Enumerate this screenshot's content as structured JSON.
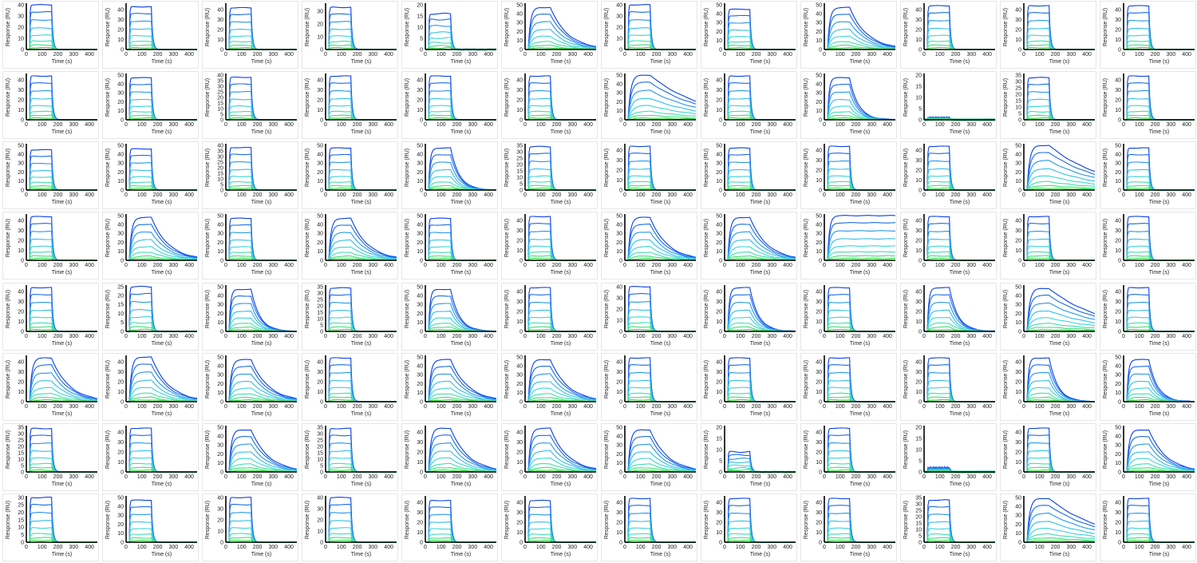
{
  "colors": {
    "series_gradient": [
      "#0a3fe8",
      "#1f7de8",
      "#32b8ea",
      "#3fd9d4",
      "#43e08f",
      "#2fdc3a"
    ],
    "axis": "#000000",
    "panel_border": "#e6e6e6"
  },
  "chart_data": {
    "type": "line",
    "layout": {
      "rows": 8,
      "cols": 12
    },
    "xlabel": "Time (s)",
    "ylabel": "Response (RU)",
    "xlim": [
      0,
      450
    ],
    "xticks": [
      0,
      100,
      200,
      300,
      400
    ],
    "injection": {
      "start_s": 20,
      "end_s": 160
    },
    "panels": [
      {
        "ymax": 40,
        "yticks": [
          0,
          10,
          20,
          30,
          40
        ],
        "kinetics": "fast",
        "peak": 40
      },
      {
        "ymax": 45,
        "yticks": [
          0,
          10,
          20,
          30,
          40
        ],
        "kinetics": "fast",
        "peak": 43
      },
      {
        "ymax": 45,
        "yticks": [
          0,
          10,
          20,
          30,
          40
        ],
        "kinetics": "fast",
        "peak": 42
      },
      {
        "ymax": 35,
        "yticks": [
          0,
          10,
          20,
          30
        ],
        "kinetics": "fast",
        "peak": 33
      },
      {
        "ymax": 20,
        "yticks": [
          0,
          5,
          10,
          15,
          20
        ],
        "kinetics": "fast",
        "peak": 16
      },
      {
        "ymax": 50,
        "yticks": [
          0,
          10,
          20,
          30,
          40,
          50
        ],
        "kinetics": "slow",
        "peak": 47
      },
      {
        "ymax": 40,
        "yticks": [
          0,
          10,
          20,
          30,
          40
        ],
        "kinetics": "fast",
        "peak": 40
      },
      {
        "ymax": 50,
        "yticks": [
          0,
          10,
          20,
          30,
          40,
          50
        ],
        "kinetics": "fast",
        "peak": 45
      },
      {
        "ymax": 50,
        "yticks": [
          0,
          10,
          20,
          30,
          40,
          50
        ],
        "kinetics": "slow",
        "peak": 47
      },
      {
        "ymax": 45,
        "yticks": [
          0,
          10,
          20,
          30,
          40
        ],
        "kinetics": "fast",
        "peak": 44
      },
      {
        "ymax": 45,
        "yticks": [
          0,
          10,
          20,
          30,
          40
        ],
        "kinetics": "fast",
        "peak": 44
      },
      {
        "ymax": 45,
        "yticks": [
          0,
          10,
          20,
          30,
          40
        ],
        "kinetics": "fast",
        "peak": 44
      },
      {
        "ymax": 45,
        "yticks": [
          0,
          10,
          20,
          30,
          40
        ],
        "kinetics": "fast",
        "peak": 44
      },
      {
        "ymax": 50,
        "yticks": [
          0,
          10,
          20,
          30,
          40,
          50
        ],
        "kinetics": "fast",
        "peak": 47
      },
      {
        "ymax": 40,
        "yticks": [
          0,
          5,
          10,
          15,
          20,
          25,
          30,
          35,
          40
        ],
        "kinetics": "fast",
        "peak": 38
      },
      {
        "ymax": 45,
        "yticks": [
          0,
          10,
          20,
          30,
          40
        ],
        "kinetics": "fast",
        "peak": 44
      },
      {
        "ymax": 45,
        "yticks": [
          0,
          10,
          20,
          30,
          40
        ],
        "kinetics": "fast",
        "peak": 44
      },
      {
        "ymax": 45,
        "yticks": [
          0,
          10,
          20,
          30,
          40
        ],
        "kinetics": "fast",
        "peak": 44
      },
      {
        "ymax": 50,
        "yticks": [
          0,
          10,
          20,
          30,
          40,
          50
        ],
        "kinetics": "veryslow",
        "peak": 50
      },
      {
        "ymax": 45,
        "yticks": [
          0,
          10,
          20,
          30,
          40
        ],
        "kinetics": "fast",
        "peak": 44
      },
      {
        "ymax": 50,
        "yticks": [
          0,
          10,
          20,
          30,
          40,
          50
        ],
        "kinetics": "medium",
        "peak": 47
      },
      {
        "ymax": 20,
        "yticks": [
          0,
          5,
          10,
          15,
          20
        ],
        "kinetics": "flat",
        "peak": 1
      },
      {
        "ymax": 35,
        "yticks": [
          0,
          5,
          10,
          15,
          20,
          25,
          30,
          35
        ],
        "kinetics": "fast",
        "peak": 33
      },
      {
        "ymax": 45,
        "yticks": [
          0,
          10,
          20,
          30,
          40
        ],
        "kinetics": "fast",
        "peak": 44
      },
      {
        "ymax": 50,
        "yticks": [
          0,
          10,
          20,
          30,
          40,
          50
        ],
        "kinetics": "fast",
        "peak": 45
      },
      {
        "ymax": 50,
        "yticks": [
          0,
          10,
          20,
          30,
          40,
          50
        ],
        "kinetics": "fast",
        "peak": 46
      },
      {
        "ymax": 40,
        "yticks": [
          0,
          5,
          10,
          15,
          20,
          25,
          30,
          35,
          40
        ],
        "kinetics": "fast",
        "peak": 38
      },
      {
        "ymax": 50,
        "yticks": [
          0,
          10,
          20,
          30,
          40,
          50
        ],
        "kinetics": "fast",
        "peak": 47
      },
      {
        "ymax": 50,
        "yticks": [
          0,
          10,
          20,
          30,
          40,
          50
        ],
        "kinetics": "medium",
        "peak": 47
      },
      {
        "ymax": 35,
        "yticks": [
          0,
          5,
          10,
          15,
          20,
          25,
          30,
          35
        ],
        "kinetics": "fast",
        "peak": 34
      },
      {
        "ymax": 45,
        "yticks": [
          0,
          10,
          20,
          30,
          40
        ],
        "kinetics": "fast",
        "peak": 44
      },
      {
        "ymax": 50,
        "yticks": [
          0,
          10,
          20,
          30,
          40,
          50
        ],
        "kinetics": "fast",
        "peak": 47
      },
      {
        "ymax": 45,
        "yticks": [
          0,
          10,
          20,
          30,
          40
        ],
        "kinetics": "fast",
        "peak": 44
      },
      {
        "ymax": 45,
        "yticks": [
          0,
          10,
          20,
          30,
          40
        ],
        "kinetics": "fast",
        "peak": 44
      },
      {
        "ymax": 50,
        "yticks": [
          0,
          10,
          20,
          30,
          40,
          50
        ],
        "kinetics": "veryslow",
        "peak": 50
      },
      {
        "ymax": 50,
        "yticks": [
          0,
          10,
          20,
          30,
          40,
          50
        ],
        "kinetics": "fast",
        "peak": 47
      },
      {
        "ymax": 45,
        "yticks": [
          0,
          10,
          20,
          30,
          40
        ],
        "kinetics": "fast",
        "peak": 44
      },
      {
        "ymax": 50,
        "yticks": [
          0,
          10,
          20,
          30,
          40,
          50
        ],
        "kinetics": "slow",
        "peak": 48
      },
      {
        "ymax": 50,
        "yticks": [
          0,
          10,
          20,
          30,
          40,
          50
        ],
        "kinetics": "fast",
        "peak": 47
      },
      {
        "ymax": 50,
        "yticks": [
          0,
          10,
          20,
          30,
          40,
          50
        ],
        "kinetics": "slow",
        "peak": 47
      },
      {
        "ymax": 50,
        "yticks": [
          0,
          10,
          20,
          30,
          40,
          50
        ],
        "kinetics": "fast",
        "peak": 47
      },
      {
        "ymax": 45,
        "yticks": [
          0,
          10,
          20,
          30,
          40
        ],
        "kinetics": "fast",
        "peak": 44
      },
      {
        "ymax": 50,
        "yticks": [
          0,
          10,
          20,
          30,
          40,
          50
        ],
        "kinetics": "slow",
        "peak": 48
      },
      {
        "ymax": 50,
        "yticks": [
          0,
          10,
          20,
          30,
          40,
          50
        ],
        "kinetics": "slow",
        "peak": 48
      },
      {
        "ymax": 50,
        "yticks": [
          0,
          10,
          20,
          30,
          40,
          50
        ],
        "kinetics": "none",
        "peak": 50
      },
      {
        "ymax": 45,
        "yticks": [
          0,
          10,
          20,
          30,
          40
        ],
        "kinetics": "fast",
        "peak": 44
      },
      {
        "ymax": 45,
        "yticks": [
          0,
          10,
          20,
          30,
          40
        ],
        "kinetics": "fast",
        "peak": 44
      },
      {
        "ymax": 45,
        "yticks": [
          0,
          10,
          20,
          30,
          40
        ],
        "kinetics": "fast",
        "peak": 44
      },
      {
        "ymax": 45,
        "yticks": [
          0,
          10,
          20,
          30,
          40
        ],
        "kinetics": "fast",
        "peak": 44
      },
      {
        "ymax": 25,
        "yticks": [
          0,
          5,
          10,
          15,
          20,
          25
        ],
        "kinetics": "fast",
        "peak": 25
      },
      {
        "ymax": 50,
        "yticks": [
          0,
          10,
          20,
          30,
          40,
          50
        ],
        "kinetics": "medium",
        "peak": 47
      },
      {
        "ymax": 35,
        "yticks": [
          0,
          5,
          10,
          15,
          20,
          25,
          30,
          35
        ],
        "kinetics": "fast",
        "peak": 34
      },
      {
        "ymax": 50,
        "yticks": [
          0,
          10,
          20,
          30,
          40,
          50
        ],
        "kinetics": "medium",
        "peak": 47
      },
      {
        "ymax": 45,
        "yticks": [
          0,
          10,
          20,
          30,
          40
        ],
        "kinetics": "fast",
        "peak": 44
      },
      {
        "ymax": 40,
        "yticks": [
          0,
          10,
          20,
          30,
          40
        ],
        "kinetics": "fast",
        "peak": 40
      },
      {
        "ymax": 45,
        "yticks": [
          0,
          10,
          20,
          30,
          40
        ],
        "kinetics": "medium",
        "peak": 44
      },
      {
        "ymax": 45,
        "yticks": [
          0,
          10,
          20,
          30,
          40
        ],
        "kinetics": "fast",
        "peak": 44
      },
      {
        "ymax": 45,
        "yticks": [
          0,
          10,
          20,
          30,
          40
        ],
        "kinetics": "medium",
        "peak": 44
      },
      {
        "ymax": 50,
        "yticks": [
          0,
          10,
          20,
          30,
          40,
          50
        ],
        "kinetics": "veryslow",
        "peak": 48
      },
      {
        "ymax": 45,
        "yticks": [
          0,
          10,
          20,
          30,
          40
        ],
        "kinetics": "fast",
        "peak": 44
      },
      {
        "ymax": 45,
        "yticks": [
          0,
          10,
          20,
          30,
          40
        ],
        "kinetics": "slow",
        "peak": 44
      },
      {
        "ymax": 45,
        "yticks": [
          0,
          10,
          20,
          30,
          40
        ],
        "kinetics": "slow",
        "peak": 45
      },
      {
        "ymax": 50,
        "yticks": [
          0,
          10,
          20,
          30,
          40,
          50
        ],
        "kinetics": "slow",
        "peak": 47
      },
      {
        "ymax": 45,
        "yticks": [
          0,
          10,
          20,
          30,
          40
        ],
        "kinetics": "fast",
        "peak": 44
      },
      {
        "ymax": 50,
        "yticks": [
          0,
          10,
          20,
          30,
          40,
          50
        ],
        "kinetics": "slow",
        "peak": 47
      },
      {
        "ymax": 50,
        "yticks": [
          0,
          10,
          20,
          30,
          40,
          50
        ],
        "kinetics": "slow",
        "peak": 47
      },
      {
        "ymax": 45,
        "yticks": [
          0,
          10,
          20,
          30,
          40
        ],
        "kinetics": "fast",
        "peak": 44
      },
      {
        "ymax": 45,
        "yticks": [
          0,
          10,
          20,
          30,
          40
        ],
        "kinetics": "fast",
        "peak": 44
      },
      {
        "ymax": 45,
        "yticks": [
          0,
          10,
          20,
          30,
          40
        ],
        "kinetics": "fast",
        "peak": 44
      },
      {
        "ymax": 45,
        "yticks": [
          0,
          10,
          20,
          30,
          40
        ],
        "kinetics": "fast",
        "peak": 44
      },
      {
        "ymax": 45,
        "yticks": [
          0,
          10,
          20,
          30,
          40
        ],
        "kinetics": "medium",
        "peak": 44
      },
      {
        "ymax": 50,
        "yticks": [
          0,
          10,
          20,
          30,
          40,
          50
        ],
        "kinetics": "medium",
        "peak": 47
      },
      {
        "ymax": 35,
        "yticks": [
          0,
          5,
          10,
          15,
          20,
          25,
          30,
          35
        ],
        "kinetics": "fast",
        "peak": 34
      },
      {
        "ymax": 45,
        "yticks": [
          0,
          10,
          20,
          30,
          40
        ],
        "kinetics": "fast",
        "peak": 44
      },
      {
        "ymax": 50,
        "yticks": [
          0,
          10,
          20,
          30,
          40,
          50
        ],
        "kinetics": "slow",
        "peak": 47
      },
      {
        "ymax": 35,
        "yticks": [
          0,
          5,
          10,
          15,
          20,
          25,
          30,
          35
        ],
        "kinetics": "fast",
        "peak": 34
      },
      {
        "ymax": 45,
        "yticks": [
          0,
          10,
          20,
          30,
          40
        ],
        "kinetics": "slow",
        "peak": 44
      },
      {
        "ymax": 45,
        "yticks": [
          0,
          10,
          20,
          30,
          40
        ],
        "kinetics": "slow",
        "peak": 44
      },
      {
        "ymax": 50,
        "yticks": [
          0,
          10,
          20,
          30,
          40,
          50
        ],
        "kinetics": "slow",
        "peak": 47
      },
      {
        "ymax": 20,
        "yticks": [
          0,
          5,
          10,
          15,
          20
        ],
        "kinetics": "fast",
        "peak": 9
      },
      {
        "ymax": 45,
        "yticks": [
          0,
          10,
          20,
          30,
          40
        ],
        "kinetics": "fast",
        "peak": 44
      },
      {
        "ymax": 20,
        "yticks": [
          0,
          5,
          10,
          15,
          20
        ],
        "kinetics": "flat",
        "peak": 2
      },
      {
        "ymax": 45,
        "yticks": [
          0,
          10,
          20,
          30,
          40
        ],
        "kinetics": "fast",
        "peak": 44
      },
      {
        "ymax": 50,
        "yticks": [
          0,
          10,
          20,
          30,
          40,
          50
        ],
        "kinetics": "slow",
        "peak": 47
      },
      {
        "ymax": 30,
        "yticks": [
          0,
          5,
          10,
          15,
          20,
          25,
          30
        ],
        "kinetics": "fast",
        "peak": 30
      },
      {
        "ymax": 50,
        "yticks": [
          0,
          10,
          20,
          30,
          40,
          50
        ],
        "kinetics": "fast",
        "peak": 47
      },
      {
        "ymax": 40,
        "yticks": [
          0,
          10,
          20,
          30,
          40
        ],
        "kinetics": "fast",
        "peak": 40
      },
      {
        "ymax": 40,
        "yticks": [
          0,
          10,
          20,
          30,
          40
        ],
        "kinetics": "fast",
        "peak": 40
      },
      {
        "ymax": 45,
        "yticks": [
          0,
          10,
          20,
          30,
          40
        ],
        "kinetics": "fast",
        "peak": 42
      },
      {
        "ymax": 45,
        "yticks": [
          0,
          10,
          20,
          30,
          40
        ],
        "kinetics": "fast",
        "peak": 42
      },
      {
        "ymax": 45,
        "yticks": [
          0,
          10,
          20,
          30,
          40
        ],
        "kinetics": "fast",
        "peak": 44
      },
      {
        "ymax": 45,
        "yticks": [
          0,
          10,
          20,
          30,
          40
        ],
        "kinetics": "fast",
        "peak": 44
      },
      {
        "ymax": 45,
        "yticks": [
          0,
          10,
          20,
          30,
          40
        ],
        "kinetics": "fast",
        "peak": 44
      },
      {
        "ymax": 35,
        "yticks": [
          0,
          5,
          10,
          15,
          20,
          25,
          30,
          35
        ],
        "kinetics": "fast",
        "peak": 33
      },
      {
        "ymax": 50,
        "yticks": [
          0,
          10,
          20,
          30,
          40,
          50
        ],
        "kinetics": "veryslow",
        "peak": 49
      },
      {
        "ymax": 45,
        "yticks": [
          0,
          10,
          20,
          30,
          40
        ],
        "kinetics": "fast",
        "peak": 44
      }
    ]
  }
}
